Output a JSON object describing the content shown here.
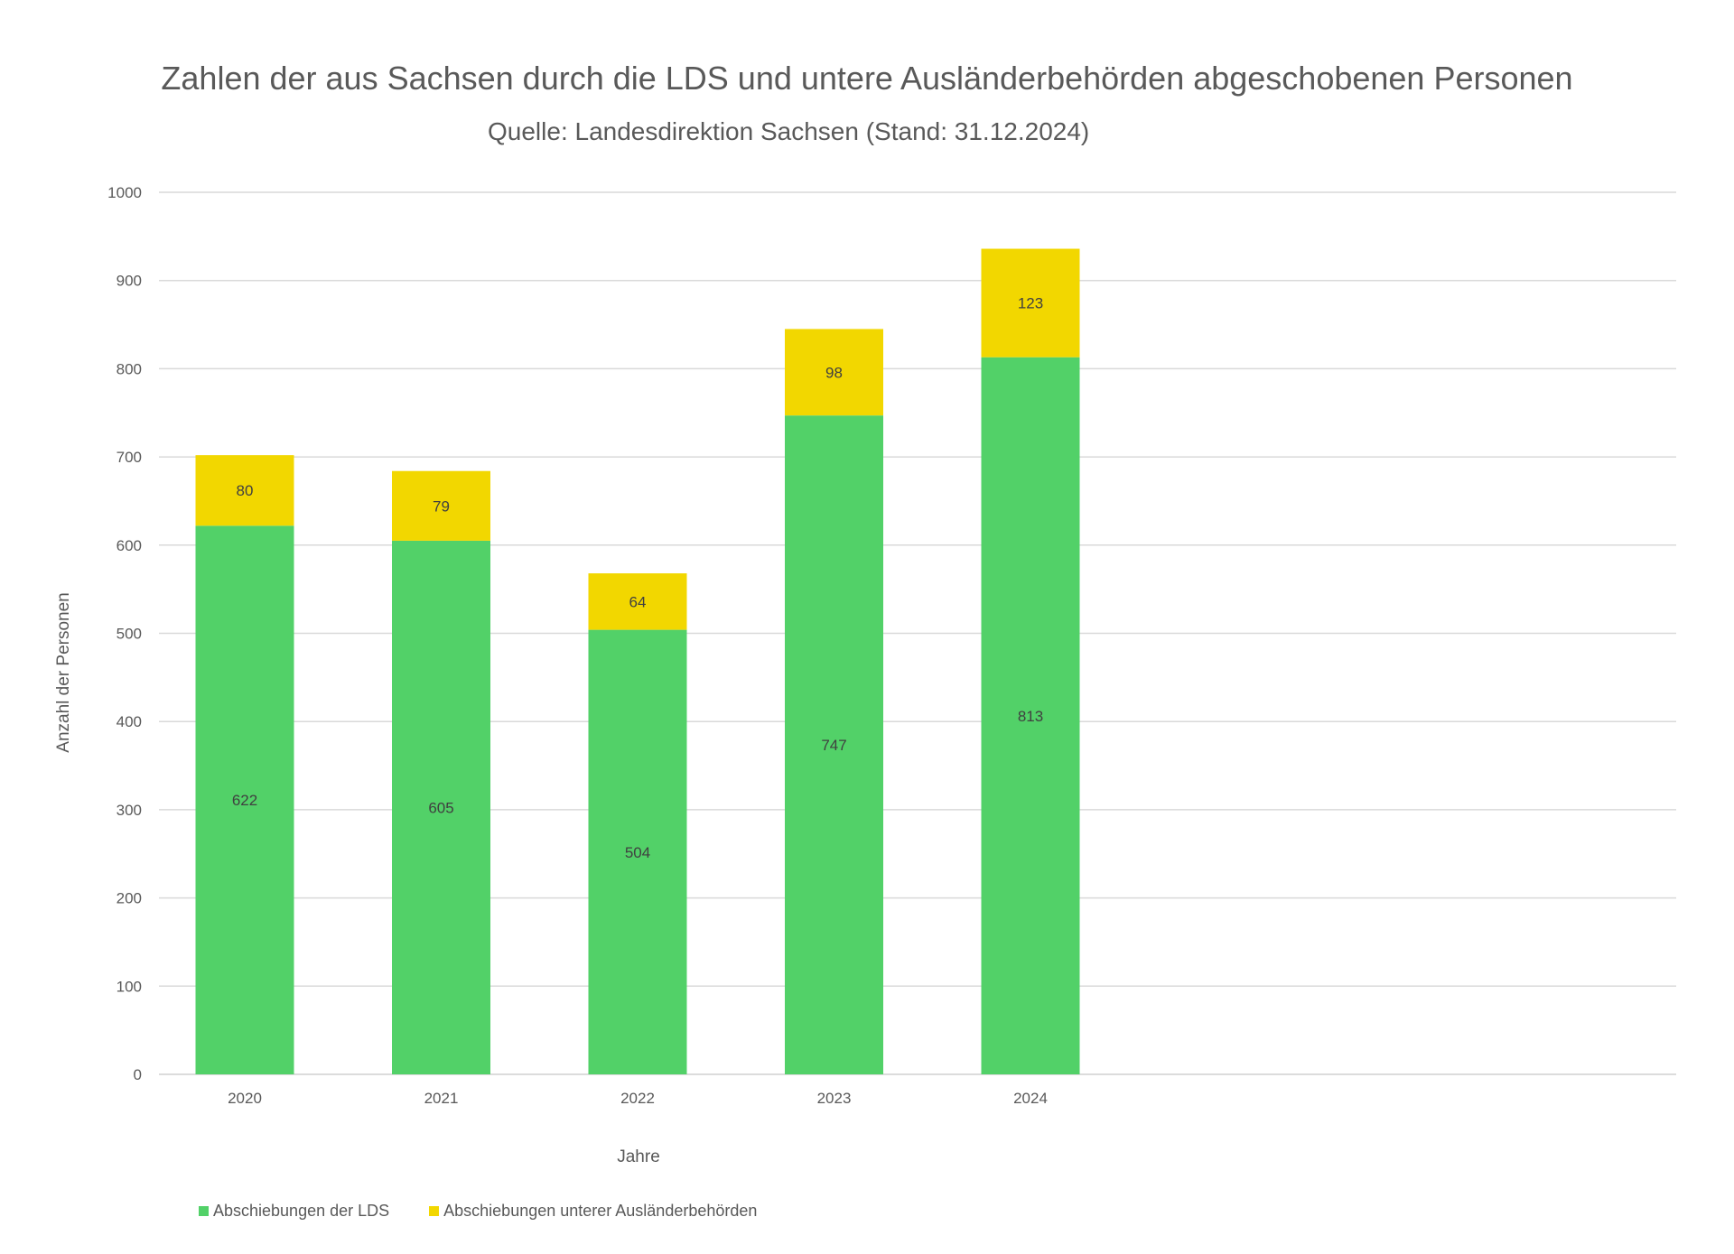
{
  "chart_data": {
    "type": "bar",
    "stacked": true,
    "title": "Zahlen der aus Sachsen durch die LDS und untere Ausländerbehörden abgeschobenen Personen",
    "subtitle": "Quelle: Landesdirektion Sachsen (Stand: 31.12.2024)",
    "xlabel": "Jahre",
    "ylabel": "Anzahl der Personen",
    "categories": [
      "2020",
      "2021",
      "2022",
      "2023",
      "2024"
    ],
    "series": [
      {
        "name": "Abschiebungen der LDS",
        "color": "#52D168",
        "values": [
          622,
          605,
          504,
          747,
          813
        ]
      },
      {
        "name": "Abschiebungen unterer Ausländerbehörden",
        "color": "#F2D700",
        "values": [
          80,
          79,
          64,
          98,
          123
        ]
      }
    ],
    "ylim": [
      0,
      1000
    ],
    "yticks": [
      "0",
      "100",
      "200",
      "300",
      "400",
      "500",
      "600",
      "700",
      "800",
      "900",
      "1000"
    ],
    "grid": true,
    "legend": "bottom-left"
  }
}
